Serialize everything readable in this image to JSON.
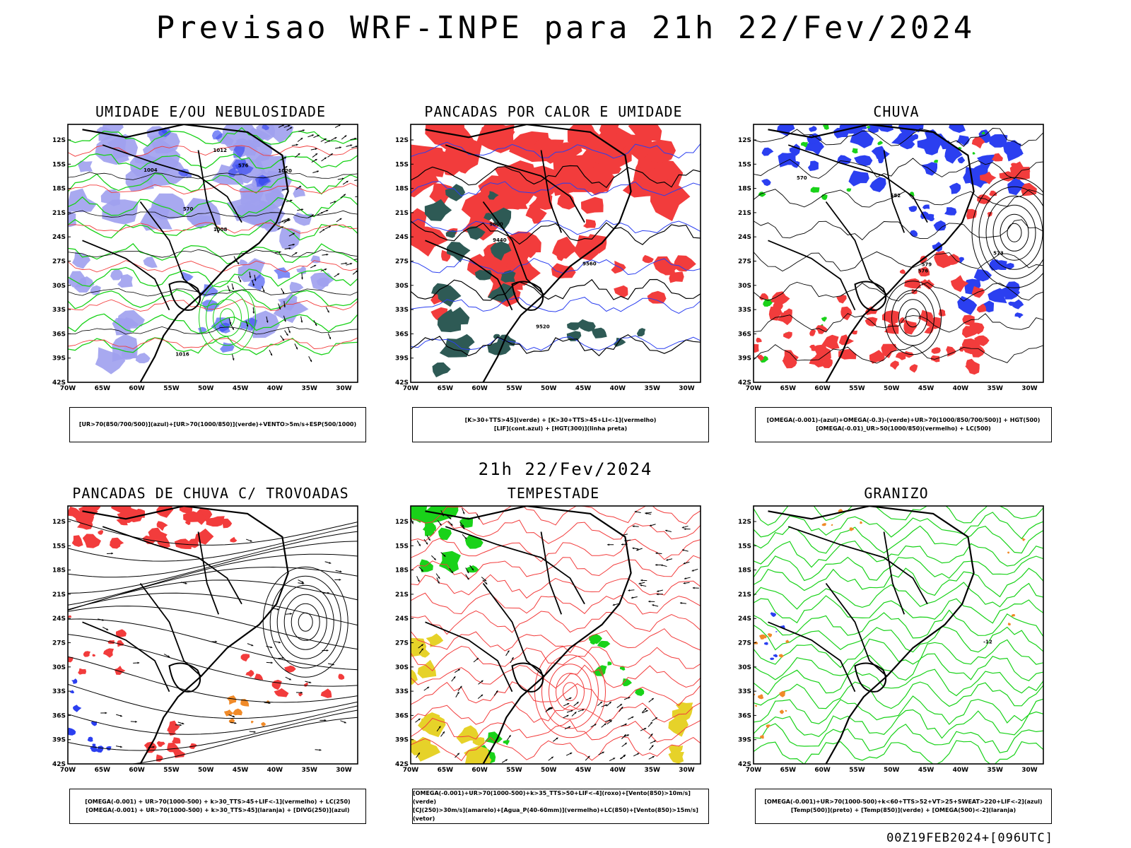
{
  "title": "Previsao WRF-INPE  para 21h 22/Fev/2024",
  "mid_date": "21h 22/Fev/2024",
  "footer": "00Z19FEB2024+[096UTC]",
  "lat_labels": [
    "12S",
    "15S",
    "18S",
    "21S",
    "24S",
    "27S",
    "30S",
    "33S",
    "36S",
    "39S",
    "42S"
  ],
  "lon_labels": [
    "70W",
    "65W",
    "60W",
    "55W",
    "50W",
    "45W",
    "40W",
    "35W",
    "30W"
  ],
  "colors": {
    "blue": "#2b3ff0",
    "green": "#19d219",
    "red": "#f23c3c",
    "darkteal": "#2e5a55",
    "lilac": "#9fa0ee",
    "yellow": "#e6d229",
    "orange": "#f08a28"
  },
  "panels": [
    {
      "title": "UMIDADE E/OU NEBULOSIDADE",
      "legend": [
        "[UR>70(850/700/500)](azul)+[UR>70(1000/850)](verde)+VENTO>5m/s+ESP(500/1000)"
      ],
      "contour_labels": [
        "1008",
        "1016",
        "1004",
        "1012",
        "1020",
        "570",
        "576"
      ]
    },
    {
      "title": "PANCADAS POR CALOR E UMIDADE",
      "legend": [
        "[K>30+TTS>45](verde) + [K>30+TTS>45+LI<-1](vermelho)",
        "[LIF](cont.azul) + [HGT(300)](linha preta)"
      ],
      "contour_labels": [
        "9600",
        "9520",
        "9440",
        "9560"
      ]
    },
    {
      "title": "CHUVA",
      "legend": [
        "[OMEGA(-0.001)-(azul)+OMEGA(-0.3)-(verde)+UR>70(1000/850/700/500)] + HGT(500)",
        "[OMEGA(-0.01)_UR>50(1000/850)(vermelho) + LC(500)"
      ],
      "contour_labels": [
        "582",
        "579",
        "576",
        "573",
        "570"
      ]
    },
    {
      "title": "PANCADAS DE CHUVA C/ TROVOADAS",
      "legend": [
        "[OMEGA(-0.001) + UR>70(1000-500) + k>30_TTS>45+LIF<-1](vermelho) + LC(250)",
        "[OMEGA(-0.001) + UR>70(1000-500) + k>30_TTS>45](laranja) + [DIVG(250)](azul)"
      ],
      "contour_labels": []
    },
    {
      "title": "TEMPESTADE",
      "legend": [
        "[OMEGA(-0.001)+UR>70(1000-500)+k>35_TTS>50+LIF<-4](roxo)+[Vento(850)>10m/s](verde)",
        "[CJ(250)>30m/s](amarelo)+[Agua_P(40-60mm)](vermelho)+LC(850)+[Vento(850)>15m/s](vetor)"
      ],
      "contour_labels": []
    },
    {
      "title": "GRANIZO",
      "legend": [
        "[OMEGA(-0.001)+UR>70(1000-500)+k<60+TTS>52+VT>25+SWEAT>220+LIF<-2](azul)",
        "[Temp(500)](preto) + [Temp(850)](verde) + [OMEGA(500)<-2](laranja)"
      ],
      "contour_labels": [
        "-12"
      ]
    }
  ]
}
